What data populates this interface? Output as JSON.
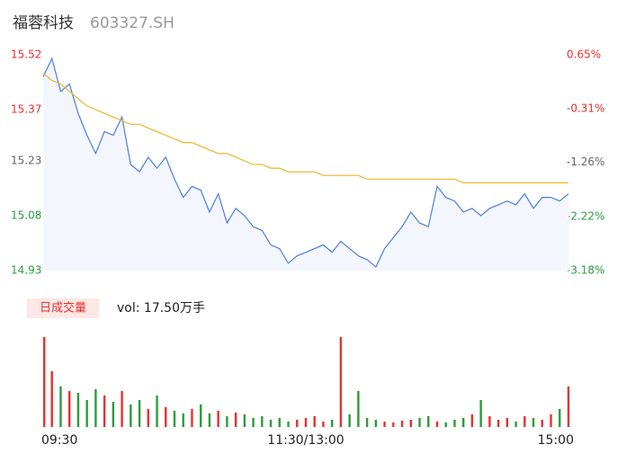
{
  "header": {
    "name": "福蓉科技",
    "code": "603327.SH"
  },
  "chart_data": [
    {
      "type": "line",
      "x": [
        0,
        4,
        8,
        12,
        16,
        20,
        24,
        28,
        32,
        36,
        40,
        44,
        48,
        52,
        56,
        60,
        64,
        68,
        72,
        76,
        80,
        84,
        88,
        92,
        96,
        100,
        104,
        108,
        112,
        116,
        120,
        124,
        128,
        132,
        136,
        140,
        144,
        148,
        152,
        156,
        160,
        164,
        168,
        172,
        176,
        180,
        184,
        188,
        192,
        196,
        200,
        204,
        208,
        212,
        216,
        220,
        224,
        228,
        232,
        236,
        240
      ],
      "xlim": [
        0,
        240
      ],
      "xticks": [
        {
          "value": 0,
          "label": "09:30"
        },
        {
          "value": 120,
          "label": "11:30/13:00"
        },
        {
          "value": 240,
          "label": "15:00"
        }
      ],
      "series": [
        {
          "color": "#4a7fe0",
          "values": [
            15.46,
            15.51,
            15.42,
            15.44,
            15.36,
            15.3,
            15.25,
            15.31,
            15.3,
            15.35,
            15.22,
            15.2,
            15.24,
            15.21,
            15.24,
            15.18,
            15.13,
            15.16,
            15.15,
            15.09,
            15.14,
            15.06,
            15.1,
            15.08,
            15.05,
            15.04,
            15.0,
            14.99,
            14.95,
            14.97,
            14.98,
            14.99,
            15.0,
            14.98,
            15.01,
            14.99,
            14.97,
            14.96,
            14.94,
            14.99,
            15.02,
            15.05,
            15.09,
            15.06,
            15.05,
            15.16,
            15.13,
            15.12,
            15.09,
            15.1,
            15.08,
            15.1,
            15.11,
            15.12,
            15.11,
            15.14,
            15.1,
            15.13,
            15.13,
            15.12,
            15.14
          ]
        },
        {
          "color": "#f0b429",
          "values": [
            15.47,
            15.45,
            15.44,
            15.42,
            15.4,
            15.38,
            15.37,
            15.36,
            15.35,
            15.34,
            15.33,
            15.33,
            15.32,
            15.31,
            15.3,
            15.29,
            15.28,
            15.28,
            15.27,
            15.26,
            15.25,
            15.25,
            15.24,
            15.23,
            15.22,
            15.22,
            15.21,
            15.21,
            15.2,
            15.2,
            15.2,
            15.2,
            15.19,
            15.19,
            15.19,
            15.19,
            15.19,
            15.18,
            15.18,
            15.18,
            15.18,
            15.18,
            15.18,
            15.18,
            15.18,
            15.18,
            15.18,
            15.18,
            15.17,
            15.17,
            15.17,
            15.17,
            15.17,
            15.17,
            15.17,
            15.17,
            15.17,
            15.17,
            15.17,
            15.17,
            15.17
          ]
        }
      ],
      "ylim": [
        14.93,
        15.52
      ],
      "yticks": [
        15.52,
        15.37,
        15.23,
        15.08,
        14.93
      ],
      "y2lim": [
        -3.18,
        0.65
      ],
      "y2ticks": [
        {
          "value": 0.65,
          "label": "0.65%"
        },
        {
          "value": -0.31,
          "label": "-0.31%"
        },
        {
          "value": -1.26,
          "label": "-1.26%"
        },
        {
          "value": -2.22,
          "label": "-2.22%"
        },
        {
          "value": -3.18,
          "label": "-3.18%"
        }
      ],
      "up_color": "#e8302e",
      "down_color": "#2a9d3a",
      "flat_color": "#666666"
    },
    {
      "type": "bar",
      "title": "日成交量",
      "subtitle": "vol: 17.50万手",
      "values": [
        100,
        62,
        45,
        40,
        38,
        30,
        42,
        35,
        28,
        40,
        25,
        30,
        20,
        35,
        22,
        18,
        15,
        20,
        25,
        15,
        18,
        12,
        16,
        14,
        10,
        12,
        8,
        10,
        6,
        8,
        10,
        12,
        6,
        8,
        100,
        14,
        40,
        10,
        8,
        6,
        5,
        7,
        8,
        10,
        12,
        6,
        5,
        8,
        10,
        14,
        30,
        12,
        8,
        10,
        6,
        12,
        10,
        8,
        14,
        20,
        45
      ],
      "ylim": [
        0,
        100
      ],
      "up_color": "#e8302e",
      "down_color": "#2a9d3a"
    }
  ]
}
